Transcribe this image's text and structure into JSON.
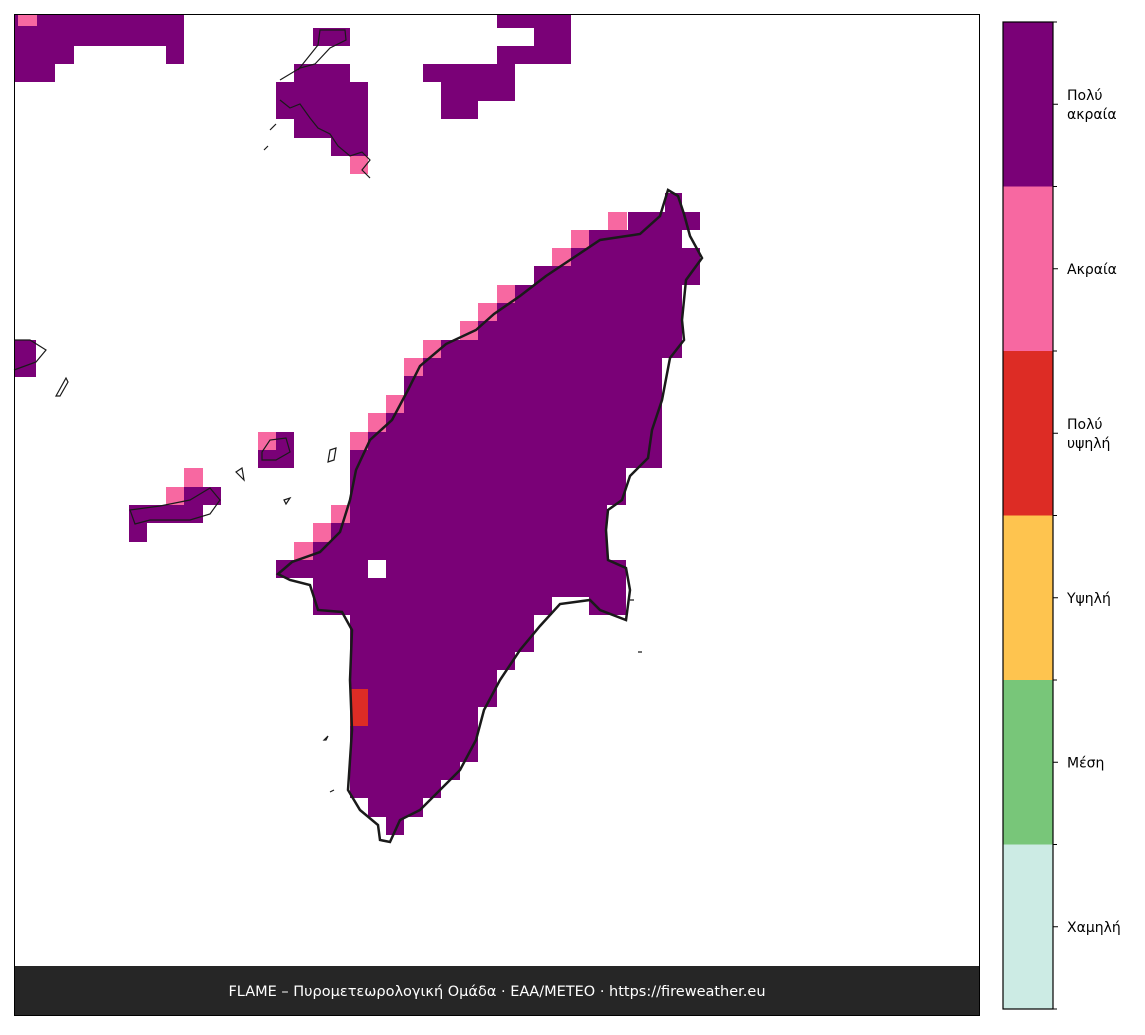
{
  "legend": {
    "items": [
      {
        "lines": [
          "Πολύ",
          "ακραία"
        ],
        "color": "#7a0177"
      },
      {
        "lines": [
          "Ακραία"
        ],
        "color": "#f768a1"
      },
      {
        "lines": [
          "Πολύ",
          "υψηλή"
        ],
        "color": "#dd2c25"
      },
      {
        "lines": [
          "Υψηλή"
        ],
        "color": "#fec44f"
      },
      {
        "lines": [
          "Μέση"
        ],
        "color": "#78c679"
      },
      {
        "lines": [
          "Χαμηλή"
        ],
        "color": "#ccebe4"
      }
    ]
  },
  "footer": "FLAME – Πυρομετεωρολογική Ομάδα · ΕΑΑ/METEO · https://fireweather.eu"
}
